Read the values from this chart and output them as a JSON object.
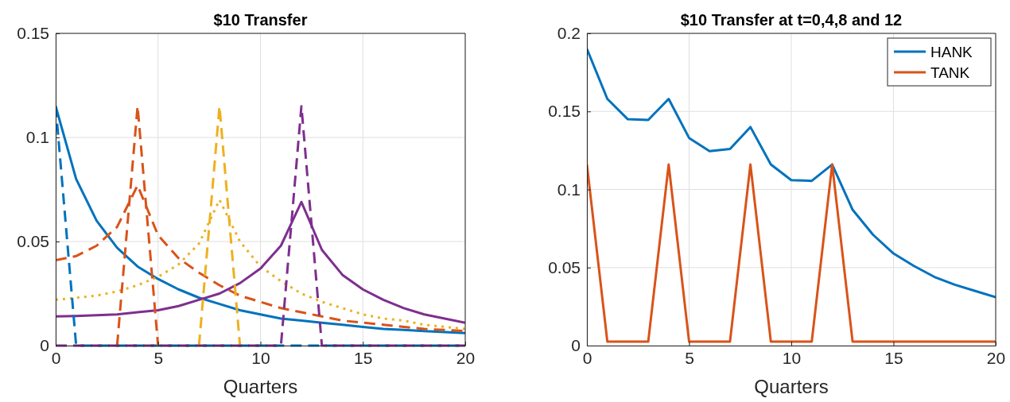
{
  "chart_data": [
    {
      "type": "line",
      "title": "$10 Transfer",
      "xlabel": "Quarters",
      "x": [
        0,
        1,
        2,
        3,
        4,
        5,
        6,
        7,
        8,
        9,
        10,
        11,
        12,
        13,
        14,
        15,
        16,
        17,
        18,
        19,
        20
      ],
      "xlim": [
        0,
        20
      ],
      "xticks": [
        0,
        5,
        10,
        15,
        20
      ],
      "ylim": [
        0,
        0.15
      ],
      "yticks": [
        0,
        0.05,
        0.1,
        0.15
      ],
      "grid": true,
      "legend": false,
      "marker": "none",
      "series": [
        {
          "color": "#0072bd",
          "line_style": "solid",
          "values": [
            0.115,
            0.08,
            0.06,
            0.047,
            0.038,
            0.032,
            0.027,
            0.023,
            0.02,
            0.017,
            0.015,
            0.013,
            0.012,
            0.011,
            0.01,
            0.009,
            0.008,
            0.0075,
            0.007,
            0.0065,
            0.006
          ]
        },
        {
          "color": "#d95319",
          "line_style": "dashed",
          "values": [
            0.041,
            0.043,
            0.048,
            0.057,
            0.077,
            0.053,
            0.042,
            0.035,
            0.029,
            0.024,
            0.021,
            0.018,
            0.016,
            0.014,
            0.012,
            0.011,
            0.01,
            0.009,
            0.008,
            0.0075,
            0.007
          ]
        },
        {
          "color": "#edb120",
          "line_style": "dotted",
          "values": [
            0.022,
            0.023,
            0.024,
            0.026,
            0.029,
            0.033,
            0.039,
            0.049,
            0.07,
            0.05,
            0.038,
            0.031,
            0.025,
            0.021,
            0.018,
            0.015,
            0.013,
            0.012,
            0.01,
            0.009,
            0.008
          ]
        },
        {
          "color": "#7e2f8e",
          "line_style": "solid",
          "values": [
            0.014,
            0.0142,
            0.0146,
            0.015,
            0.016,
            0.017,
            0.019,
            0.022,
            0.025,
            0.03,
            0.037,
            0.048,
            0.069,
            0.046,
            0.034,
            0.027,
            0.022,
            0.018,
            0.015,
            0.013,
            0.011
          ]
        },
        {
          "color": "#0072bd",
          "line_style": "dashed",
          "values": [
            0.115,
            0,
            0,
            0,
            0,
            0,
            0,
            0,
            0,
            0,
            0,
            0,
            0,
            0,
            0,
            0,
            0,
            0,
            0,
            0,
            0
          ]
        },
        {
          "color": "#d95319",
          "line_style": "dashed",
          "values": [
            null,
            null,
            null,
            0,
            0.115,
            0,
            null,
            null,
            null,
            null,
            null,
            null,
            null,
            null,
            null,
            null,
            null,
            null,
            null,
            null,
            null
          ]
        },
        {
          "color": "#edb120",
          "line_style": "dashed",
          "values": [
            null,
            null,
            null,
            null,
            null,
            null,
            null,
            0,
            0.115,
            0,
            null,
            null,
            null,
            null,
            null,
            null,
            null,
            null,
            null,
            null,
            null
          ]
        },
        {
          "color": "#7e2f8e",
          "line_style": "dashed",
          "values": [
            0,
            0,
            0,
            0,
            0,
            0,
            0,
            0,
            0,
            0,
            0,
            0,
            0.115,
            0,
            0,
            0,
            0,
            0,
            0,
            0,
            0
          ]
        }
      ]
    },
    {
      "type": "line",
      "title": "$10 Transfer at t=0,4,8 and 12",
      "xlabel": "Quarters",
      "x": [
        0,
        1,
        2,
        3,
        4,
        5,
        6,
        7,
        8,
        9,
        10,
        11,
        12,
        13,
        14,
        15,
        16,
        17,
        18,
        19,
        20
      ],
      "xlim": [
        0,
        20
      ],
      "xticks": [
        0,
        5,
        10,
        15,
        20
      ],
      "ylim": [
        0,
        0.2
      ],
      "yticks": [
        0,
        0.05,
        0.1,
        0.15,
        0.2
      ],
      "grid": true,
      "legend": "top right",
      "marker": "none",
      "series": [
        {
          "name": "HANK",
          "color": "#0072bd",
          "line_style": "solid",
          "values": [
            0.19,
            0.158,
            0.145,
            0.1445,
            0.158,
            0.133,
            0.1245,
            0.126,
            0.14,
            0.116,
            0.106,
            0.1055,
            0.116,
            0.087,
            0.071,
            0.059,
            0.051,
            0.044,
            0.039,
            0.035,
            0.031
          ]
        },
        {
          "name": "TANK",
          "color": "#d95319",
          "line_style": "solid",
          "values": [
            0.116,
            0.0025,
            0.0025,
            0.0025,
            0.116,
            0.0025,
            0.0025,
            0.0025,
            0.116,
            0.0025,
            0.0025,
            0.0025,
            0.116,
            0.0025,
            0.0025,
            0.0025,
            0.0025,
            0.0025,
            0.0025,
            0.0025,
            0.0025
          ]
        }
      ]
    }
  ]
}
